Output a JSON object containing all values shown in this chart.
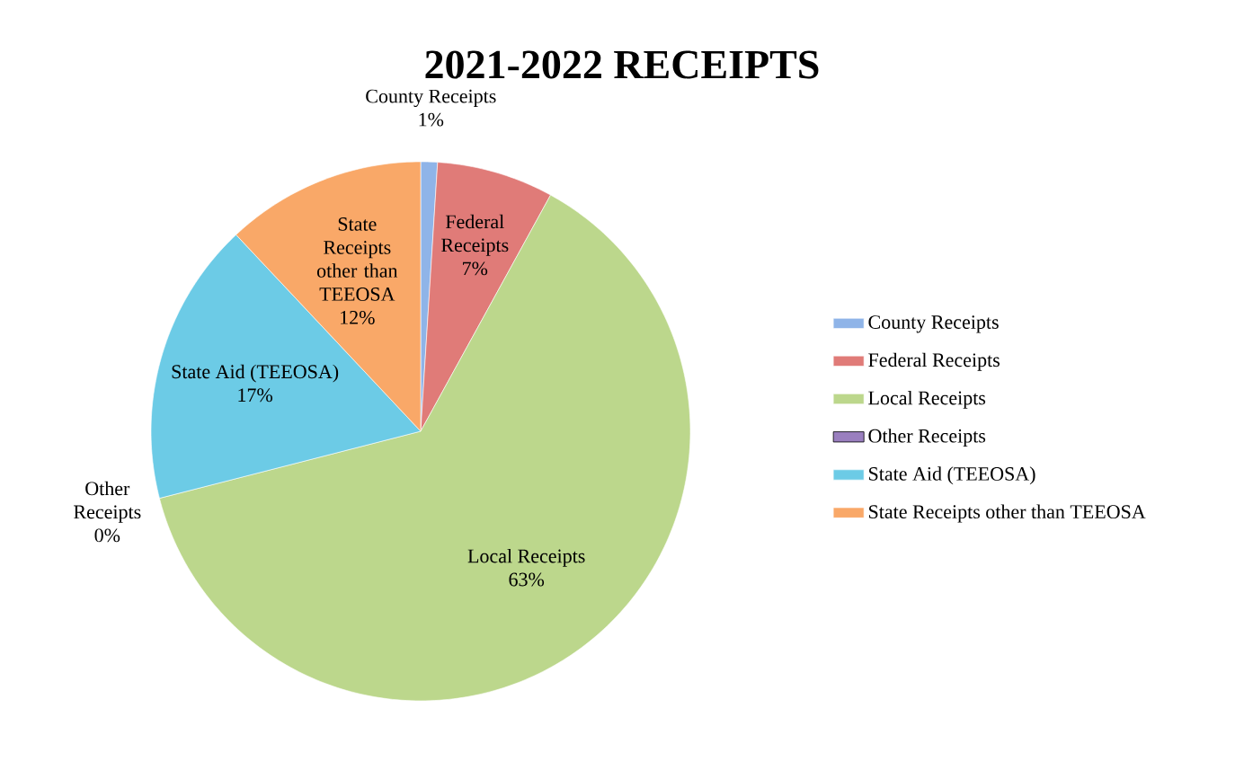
{
  "chart_data": {
    "type": "pie",
    "title": "2021-2022 RECEIPTS",
    "categories": [
      "County Receipts",
      "Federal Receipts",
      "Local Receipts",
      "Other Receipts",
      "State Aid (TEEOSA)",
      "State Receipts other than TEEOSA"
    ],
    "values": [
      1,
      7,
      63,
      0,
      17,
      12
    ],
    "value_labels": [
      "1%",
      "7%",
      "63%",
      "0%",
      "17%",
      "12%"
    ],
    "colors": [
      "#8fb4e8",
      "#e07b78",
      "#bcd78c",
      "#9a7fbf",
      "#6ccbe6",
      "#f9a868"
    ],
    "legend": "right"
  }
}
